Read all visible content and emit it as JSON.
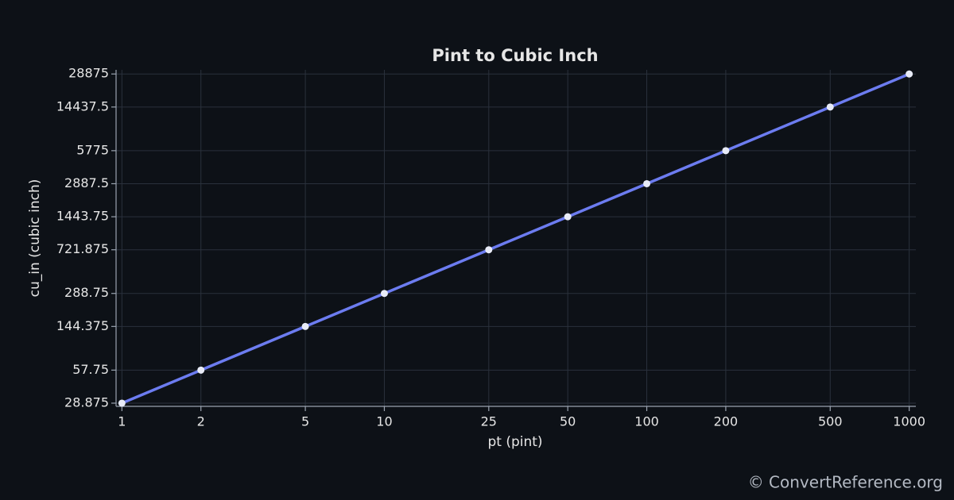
{
  "chart_data": {
    "type": "line",
    "title": "Pint to Cubic Inch",
    "x_label": "pt (pint)",
    "y_label": "cu_in (cubic inch)",
    "x": [
      1,
      2,
      5,
      10,
      25,
      50,
      100,
      200,
      500,
      1000
    ],
    "values": [
      28.875,
      57.75,
      144.375,
      288.75,
      721.875,
      1443.75,
      2887.5,
      5775,
      14437.5,
      28875
    ],
    "color": "#6c7cf0",
    "marker_color": "#e8ebf7",
    "xscale": "log",
    "yscale": "log",
    "xlim": [
      0.95,
      1060
    ],
    "ylim": [
      27,
      31500
    ],
    "xticks": [
      1,
      2,
      5,
      10,
      25,
      50,
      100,
      200,
      500,
      1000
    ],
    "yticks": [
      28.875,
      57.75,
      144.375,
      288.75,
      721.875,
      1443.75,
      2887.5,
      5775,
      14437.5,
      28875
    ],
    "grid": true,
    "watermark": "© ConvertReference.org"
  }
}
